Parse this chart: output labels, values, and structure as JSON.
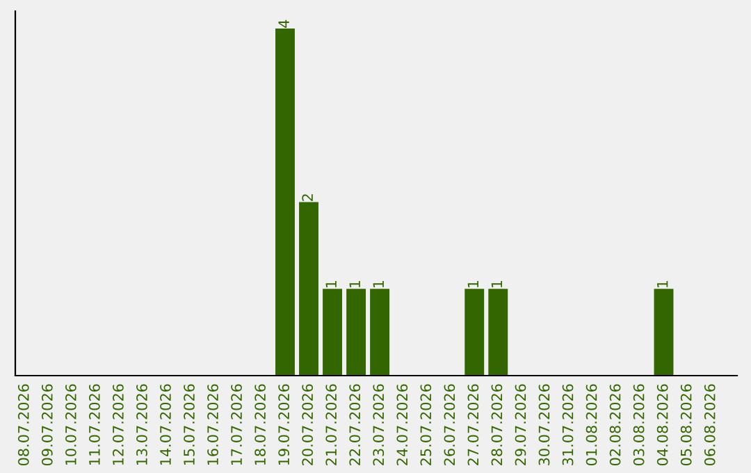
{
  "chart_data": {
    "type": "bar",
    "categories": [
      "08.07.2026",
      "09.07.2026",
      "10.07.2026",
      "11.07.2026",
      "12.07.2026",
      "13.07.2026",
      "14.07.2026",
      "15.07.2026",
      "16.07.2026",
      "17.07.2026",
      "18.07.2026",
      "19.07.2026",
      "20.07.2026",
      "21.07.2026",
      "22.07.2026",
      "23.07.2026",
      "24.07.2026",
      "25.07.2026",
      "26.07.2026",
      "27.07.2026",
      "28.07.2026",
      "29.07.2026",
      "30.07.2026",
      "31.07.2026",
      "01.08.2026",
      "02.08.2026",
      "03.08.2026",
      "04.08.2026",
      "05.08.2026",
      "06.08.2026"
    ],
    "values": [
      0,
      0,
      0,
      0,
      0,
      0,
      0,
      0,
      0,
      0,
      0,
      4,
      2,
      1,
      1,
      1,
      0,
      0,
      0,
      1,
      1,
      0,
      0,
      0,
      0,
      0,
      0,
      1,
      0,
      0
    ],
    "value_labels": [
      null,
      null,
      null,
      null,
      null,
      null,
      null,
      null,
      null,
      null,
      null,
      "4",
      "2",
      "1",
      "1",
      "1",
      null,
      null,
      null,
      "1",
      "1",
      null,
      null,
      null,
      null,
      null,
      null,
      "1",
      null,
      null
    ],
    "color": "#336600",
    "grid": false,
    "legend": false
  }
}
